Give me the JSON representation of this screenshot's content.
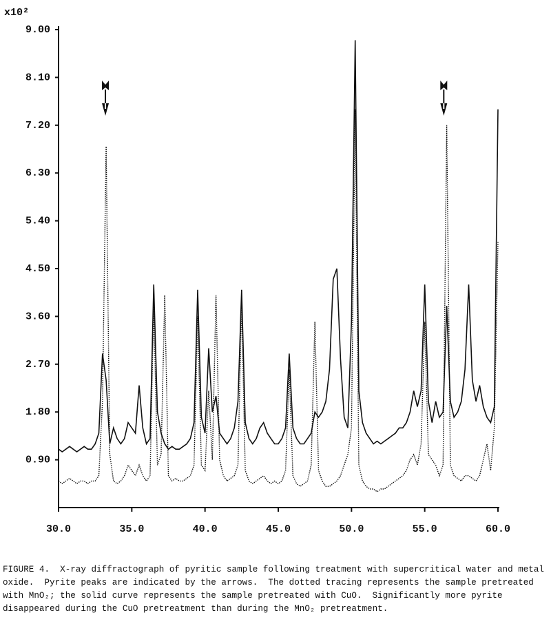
{
  "chart_data": {
    "type": "line",
    "y_multiplier": "x10²",
    "x": [
      30.0,
      30.25,
      30.5,
      30.75,
      31.0,
      31.25,
      31.5,
      31.75,
      32.0,
      32.25,
      32.5,
      32.75,
      33.0,
      33.25,
      33.5,
      33.75,
      34.0,
      34.25,
      34.5,
      34.75,
      35.0,
      35.25,
      35.5,
      35.75,
      36.0,
      36.25,
      36.5,
      36.75,
      37.0,
      37.25,
      37.5,
      37.75,
      38.0,
      38.25,
      38.5,
      38.75,
      39.0,
      39.25,
      39.5,
      39.75,
      40.0,
      40.25,
      40.5,
      40.75,
      41.0,
      41.25,
      41.5,
      41.75,
      42.0,
      42.25,
      42.5,
      42.75,
      43.0,
      43.25,
      43.5,
      43.75,
      44.0,
      44.25,
      44.5,
      44.75,
      45.0,
      45.25,
      45.5,
      45.75,
      46.0,
      46.25,
      46.5,
      46.75,
      47.0,
      47.25,
      47.5,
      47.75,
      48.0,
      48.25,
      48.5,
      48.75,
      49.0,
      49.25,
      49.5,
      49.75,
      50.0,
      50.25,
      50.5,
      50.75,
      51.0,
      51.25,
      51.5,
      51.75,
      52.0,
      52.25,
      52.5,
      52.75,
      53.0,
      53.25,
      53.5,
      53.75,
      54.0,
      54.25,
      54.5,
      54.75,
      55.0,
      55.25,
      55.5,
      55.75,
      56.0,
      56.25,
      56.5,
      56.75,
      57.0,
      57.25,
      57.5,
      57.75,
      58.0,
      58.25,
      58.5,
      58.75,
      59.0,
      59.25,
      59.5,
      59.75,
      60.0
    ],
    "series": [
      {
        "color": "#111111",
        "dash": "solid",
        "values": [
          1.1,
          1.05,
          1.1,
          1.15,
          1.1,
          1.05,
          1.1,
          1.15,
          1.1,
          1.1,
          1.2,
          1.4,
          2.9,
          2.4,
          1.2,
          1.5,
          1.3,
          1.2,
          1.3,
          1.6,
          1.5,
          1.4,
          2.3,
          1.5,
          1.2,
          1.3,
          4.2,
          1.8,
          1.4,
          1.2,
          1.1,
          1.15,
          1.1,
          1.1,
          1.15,
          1.2,
          1.3,
          1.6,
          4.1,
          1.7,
          1.4,
          3.0,
          1.8,
          2.1,
          1.4,
          1.3,
          1.2,
          1.3,
          1.5,
          2.0,
          4.1,
          1.6,
          1.3,
          1.2,
          1.3,
          1.5,
          1.6,
          1.4,
          1.3,
          1.2,
          1.2,
          1.3,
          1.5,
          2.9,
          1.5,
          1.3,
          1.2,
          1.2,
          1.3,
          1.4,
          1.8,
          1.7,
          1.8,
          2.0,
          2.6,
          4.3,
          4.5,
          2.8,
          1.7,
          1.5,
          3.5,
          8.8,
          2.2,
          1.6,
          1.4,
          1.3,
          1.2,
          1.25,
          1.2,
          1.25,
          1.3,
          1.35,
          1.4,
          1.5,
          1.5,
          1.6,
          1.8,
          2.2,
          1.9,
          2.2,
          4.2,
          2.0,
          1.6,
          2.0,
          1.7,
          1.8,
          3.8,
          2.0,
          1.7,
          1.8,
          2.0,
          2.6,
          4.2,
          2.4,
          2.0,
          2.3,
          1.9,
          1.7,
          1.6,
          1.9,
          7.5
        ]
      },
      {
        "color": "#111111",
        "dash": "dotted",
        "values": [
          0.5,
          0.45,
          0.5,
          0.55,
          0.5,
          0.45,
          0.5,
          0.5,
          0.45,
          0.5,
          0.5,
          0.6,
          2.0,
          6.8,
          1.0,
          0.5,
          0.45,
          0.5,
          0.6,
          0.8,
          0.7,
          0.6,
          0.8,
          0.6,
          0.5,
          0.6,
          3.8,
          0.8,
          1.0,
          4.0,
          0.6,
          0.5,
          0.55,
          0.5,
          0.5,
          0.55,
          0.6,
          0.8,
          3.6,
          0.8,
          0.7,
          2.2,
          0.9,
          4.0,
          0.9,
          0.6,
          0.5,
          0.55,
          0.6,
          0.8,
          3.9,
          0.7,
          0.5,
          0.45,
          0.5,
          0.55,
          0.6,
          0.5,
          0.45,
          0.5,
          0.45,
          0.5,
          0.7,
          2.6,
          0.6,
          0.45,
          0.4,
          0.45,
          0.5,
          0.8,
          3.5,
          0.7,
          0.5,
          0.4,
          0.4,
          0.45,
          0.5,
          0.6,
          0.8,
          1.0,
          1.5,
          7.5,
          0.8,
          0.5,
          0.4,
          0.35,
          0.35,
          0.3,
          0.35,
          0.35,
          0.4,
          0.45,
          0.5,
          0.55,
          0.6,
          0.7,
          0.9,
          1.0,
          0.8,
          1.2,
          3.5,
          1.0,
          0.9,
          0.8,
          0.6,
          0.8,
          7.2,
          0.8,
          0.6,
          0.55,
          0.5,
          0.6,
          0.6,
          0.55,
          0.5,
          0.6,
          0.9,
          1.2,
          0.7,
          1.5,
          5.0
        ]
      }
    ],
    "pyrite_peak_arrows": [
      33.2,
      56.3
    ],
    "xlim": [
      30,
      60
    ],
    "xticks": [
      {
        "value": 30,
        "label": "30.0"
      },
      {
        "value": 35,
        "label": "35.0"
      },
      {
        "value": 40,
        "label": "40.0"
      },
      {
        "value": 45,
        "label": "45.0"
      },
      {
        "value": 50,
        "label": "50.0"
      },
      {
        "value": 55,
        "label": "55.0"
      },
      {
        "value": 60,
        "label": "60.0"
      }
    ],
    "ylim": [
      0,
      9
    ],
    "yticks": [
      {
        "value": 0.9,
        "label": "0.90"
      },
      {
        "value": 1.8,
        "label": "1.80"
      },
      {
        "value": 2.7,
        "label": "2.70"
      },
      {
        "value": 3.6,
        "label": "3.60"
      },
      {
        "value": 4.5,
        "label": "4.50"
      },
      {
        "value": 5.4,
        "label": "5.40"
      },
      {
        "value": 6.3,
        "label": "6.30"
      },
      {
        "value": 7.2,
        "label": "7.20"
      },
      {
        "value": 8.1,
        "label": "8.10"
      },
      {
        "value": 9.0,
        "label": "9.00"
      }
    ],
    "caption": [
      "FIGURE 4.  X-ray diffractograph of pyritic sample following treatment with supercritical water and metal",
      "oxide.  Pyrite peaks are indicated by the arrows.  The dotted tracing represents the sample pretreated",
      "with MnO₂; the solid curve represents the sample pretreated with CuO.  Significantly more pyrite",
      "disappeared during the CuO pretreatment than during the MnO₂ pretreatment."
    ]
  }
}
